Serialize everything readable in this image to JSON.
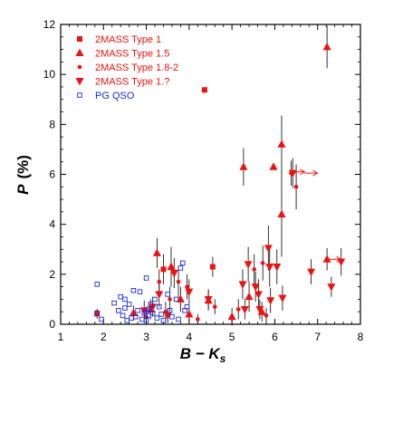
{
  "chart_data": {
    "type": "scatter",
    "xlabel": "B − K",
    "xlabel_sub": "s",
    "ylabel": "P",
    "ylabel_unit": "(%)",
    "xlim": [
      1,
      8
    ],
    "ylim": [
      0,
      12
    ],
    "x_ticks": [
      "1",
      "2",
      "3",
      "4",
      "5",
      "6",
      "7",
      "8"
    ],
    "y_ticks": [
      "0",
      "2",
      "4",
      "6",
      "8",
      "10",
      "12"
    ],
    "legend_position": "top-left",
    "colors": {
      "red": "#ee1111",
      "blue": "#1a2bd6",
      "errorbar": "#000000"
    },
    "series": [
      {
        "name": "2MASS Type 1",
        "marker": "square-filled",
        "color": "#ee1111",
        "points": [
          {
            "x": 4.36,
            "y": 9.38
          },
          {
            "x": 1.85,
            "y": 0.42,
            "err": 0.2
          },
          {
            "x": 3.4,
            "y": 2.2,
            "err": 0.6
          },
          {
            "x": 4.55,
            "y": 2.3,
            "err": 0.4
          }
        ]
      },
      {
        "name": "2MASS Type 1.5",
        "marker": "triangle-up",
        "color": "#ee1111",
        "points": [
          {
            "x": 7.22,
            "y": 11.1,
            "err": 0.85
          },
          {
            "x": 6.16,
            "y": 7.2,
            "err": 1.15
          },
          {
            "x": 5.27,
            "y": 6.3,
            "err": 0.75
          },
          {
            "x": 5.97,
            "y": 6.3,
            "err": 0.1
          },
          {
            "x": 6.16,
            "y": 4.4,
            "err": 1.7
          },
          {
            "x": 3.25,
            "y": 2.85,
            "err": 0.6
          },
          {
            "x": 3.58,
            "y": 2.3,
            "err": 0.8
          },
          {
            "x": 7.22,
            "y": 2.6,
            "err": 0.45
          },
          {
            "x": 2.7,
            "y": 0.45,
            "err": 0.3
          },
          {
            "x": 3.1,
            "y": 0.6,
            "err": 0.4
          },
          {
            "x": 3.8,
            "y": 1.0,
            "err": 0.5
          },
          {
            "x": 4.45,
            "y": 0.95,
            "err": 0.4
          },
          {
            "x": 5.0,
            "y": 0.3,
            "err": 0.35
          },
          {
            "x": 5.4,
            "y": 1.1,
            "err": 0.6
          },
          {
            "x": 5.7,
            "y": 0.5,
            "err": 0.4
          },
          {
            "x": 4.0,
            "y": 0.4,
            "err": 0.3
          }
        ]
      },
      {
        "name": "2MASS Type 1.8-2",
        "marker": "circle-small",
        "color": "#ee1111",
        "points": [
          {
            "x": 6.5,
            "y": 5.5,
            "err": 0.9
          },
          {
            "x": 6.38,
            "y": 6.05,
            "err": 0.5
          },
          {
            "x": 5.52,
            "y": 2.2,
            "err": 0.6
          },
          {
            "x": 5.72,
            "y": 2.45,
            "err": 0.7
          },
          {
            "x": 3.75,
            "y": 1.7,
            "err": 0.6
          },
          {
            "x": 3.3,
            "y": 1.7,
            "err": 0.5
          },
          {
            "x": 3.55,
            "y": 1.0,
            "err": 0.5
          },
          {
            "x": 3.95,
            "y": 1.5,
            "err": 0.5
          },
          {
            "x": 4.6,
            "y": 0.7,
            "err": 0.3
          },
          {
            "x": 5.15,
            "y": 0.6,
            "err": 0.4
          },
          {
            "x": 5.8,
            "y": 0.35,
            "err": 0.3
          },
          {
            "x": 3.0,
            "y": 0.3,
            "err": 0.25
          },
          {
            "x": 3.45,
            "y": 0.5,
            "err": 0.4
          },
          {
            "x": 4.2,
            "y": 0.2,
            "err": 0.2
          }
        ]
      },
      {
        "name": "2MASS Type 1.?",
        "marker": "triangle-down",
        "color": "#ee1111",
        "points": [
          {
            "x": 6.42,
            "y": 6.05,
            "err": 0.6
          },
          {
            "x": 5.85,
            "y": 3.05,
            "err": 0.9
          },
          {
            "x": 5.88,
            "y": 2.3,
            "err": 0.8
          },
          {
            "x": 6.05,
            "y": 2.3,
            "err": 0.7
          },
          {
            "x": 6.85,
            "y": 2.1,
            "err": 0.5
          },
          {
            "x": 7.55,
            "y": 2.5,
            "err": 0.55
          },
          {
            "x": 7.32,
            "y": 1.5,
            "err": 0.4
          },
          {
            "x": 5.38,
            "y": 2.4,
            "err": 0.7
          },
          {
            "x": 5.55,
            "y": 1.5,
            "err": 0.6
          },
          {
            "x": 5.25,
            "y": 1.6,
            "err": 0.6
          },
          {
            "x": 6.18,
            "y": 1.05,
            "err": 0.5
          },
          {
            "x": 5.62,
            "y": 1.2,
            "err": 0.6
          },
          {
            "x": 5.9,
            "y": 0.95,
            "err": 0.5
          },
          {
            "x": 4.45,
            "y": 1.0,
            "err": 0.4
          },
          {
            "x": 4.0,
            "y": 1.3,
            "err": 0.5
          },
          {
            "x": 3.65,
            "y": 2.05,
            "err": 0.6
          },
          {
            "x": 3.3,
            "y": 1.2,
            "err": 0.5
          },
          {
            "x": 2.95,
            "y": 0.55,
            "err": 0.4
          },
          {
            "x": 3.15,
            "y": 0.7,
            "err": 0.4
          },
          {
            "x": 3.5,
            "y": 0.35,
            "err": 0.3
          },
          {
            "x": 5.3,
            "y": 0.6,
            "err": 0.4
          },
          {
            "x": 5.65,
            "y": 0.6,
            "err": 0.4
          }
        ]
      },
      {
        "name": "PG QSO",
        "marker": "square-open",
        "color": "#1a2bd6",
        "points": [
          {
            "x": 1.85,
            "y": 1.6
          },
          {
            "x": 1.85,
            "y": 0.45
          },
          {
            "x": 1.95,
            "y": 0.2
          },
          {
            "x": 2.25,
            "y": 0.85
          },
          {
            "x": 2.35,
            "y": 0.55
          },
          {
            "x": 2.4,
            "y": 1.1
          },
          {
            "x": 2.45,
            "y": 0.35
          },
          {
            "x": 2.5,
            "y": 0.65
          },
          {
            "x": 2.5,
            "y": 1.0
          },
          {
            "x": 2.55,
            "y": 0.15
          },
          {
            "x": 2.6,
            "y": 0.8
          },
          {
            "x": 2.7,
            "y": 1.35
          },
          {
            "x": 2.75,
            "y": 0.3
          },
          {
            "x": 2.8,
            "y": 0.55
          },
          {
            "x": 2.85,
            "y": 1.3
          },
          {
            "x": 2.9,
            "y": 0.2
          },
          {
            "x": 2.95,
            "y": 0.45
          },
          {
            "x": 3.0,
            "y": 1.85
          },
          {
            "x": 3.0,
            "y": 0.5
          },
          {
            "x": 3.05,
            "y": 0.6
          },
          {
            "x": 3.05,
            "y": 0.35
          },
          {
            "x": 3.1,
            "y": 0.8
          },
          {
            "x": 3.15,
            "y": 0.45
          },
          {
            "x": 3.2,
            "y": 1.0
          },
          {
            "x": 3.25,
            "y": 0.25
          },
          {
            "x": 3.3,
            "y": 0.7
          },
          {
            "x": 3.35,
            "y": 0.4
          },
          {
            "x": 3.4,
            "y": 0.15
          },
          {
            "x": 3.5,
            "y": 1.2
          },
          {
            "x": 3.55,
            "y": 0.55
          },
          {
            "x": 3.6,
            "y": 0.3
          },
          {
            "x": 3.7,
            "y": 1.0
          },
          {
            "x": 3.75,
            "y": 0.2
          },
          {
            "x": 3.8,
            "y": 2.25
          },
          {
            "x": 3.85,
            "y": 2.45
          },
          {
            "x": 3.9,
            "y": 0.55
          },
          {
            "x": 3.95,
            "y": 0.7
          },
          {
            "x": 2.65,
            "y": 0.25
          },
          {
            "x": 3.0,
            "y": 0.15
          }
        ]
      }
    ],
    "arrows": [
      {
        "x": 6.4,
        "y": 6.1,
        "direction": "right"
      },
      {
        "x": 6.7,
        "y": 6.05,
        "direction": "right"
      },
      {
        "x": 7.25,
        "y": 2.6,
        "direction": "right"
      }
    ]
  }
}
